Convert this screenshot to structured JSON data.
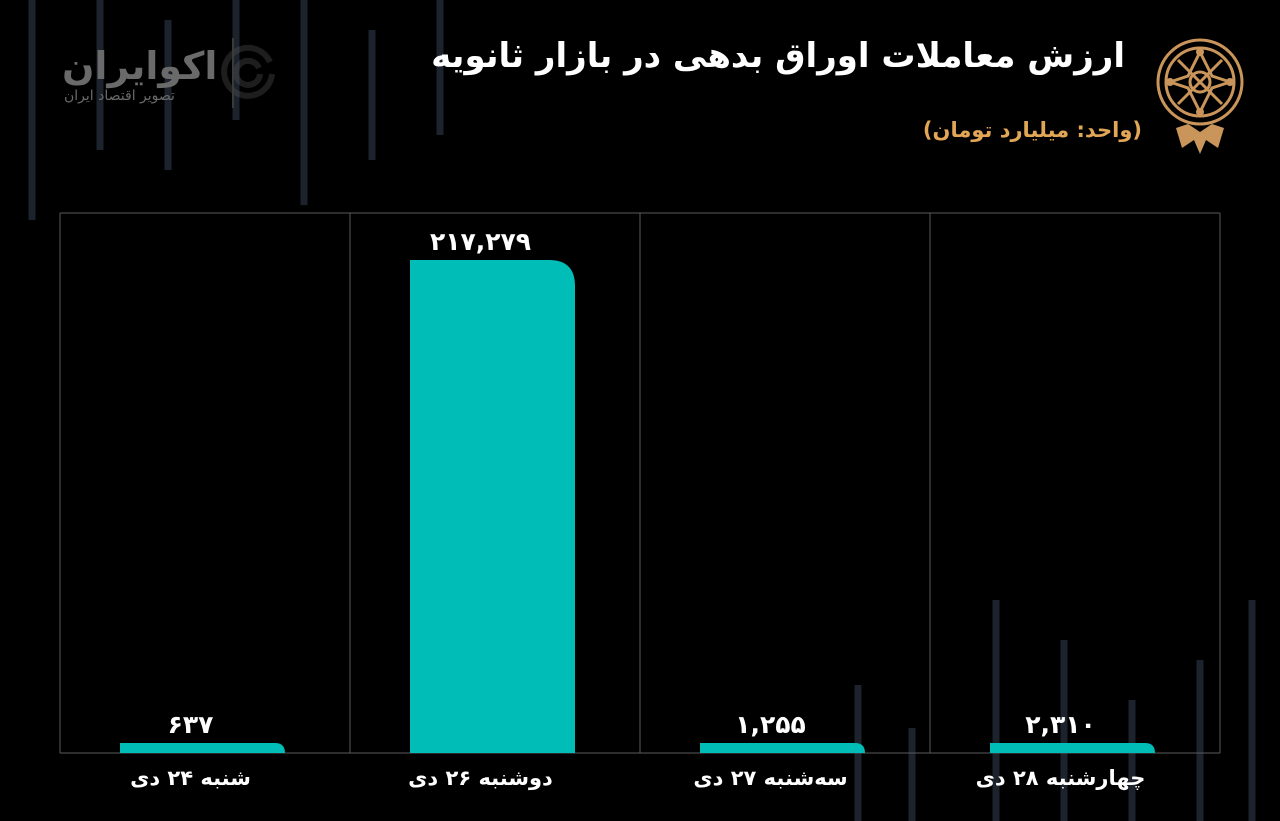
{
  "header": {
    "title": "ارزش معاملات اوراق بدهی در بازار ثانویه",
    "unit": "(واحد: میلیارد تومان)"
  },
  "watermark": {
    "brand_name": "اکوایران",
    "tagline": "تصویر اقتصاد ایران"
  },
  "colors": {
    "background": "#000000",
    "bar": "#00bdb8",
    "title": "#ffffff",
    "unit": "#e2a756",
    "grid": "#5a5a5a",
    "seal": "#c9955a"
  },
  "chart_data": {
    "type": "bar",
    "title": "ارزش معاملات اوراق بدهی در بازار ثانویه",
    "ylabel": "(واحد: میلیارد تومان)",
    "categories": [
      "شنبه ۲۴ دی",
      "دوشنبه ۲۶ دی",
      "سه‌شنبه ۲۷ دی",
      "چهارشنبه ۲۸ دی"
    ],
    "values": [
      637,
      217279,
      1255,
      2310
    ],
    "value_labels": [
      "۶۳۷",
      "۲۱۷,۲۷۹",
      "۱,۲۵۵",
      "۲,۳۱۰"
    ],
    "grid": true
  }
}
